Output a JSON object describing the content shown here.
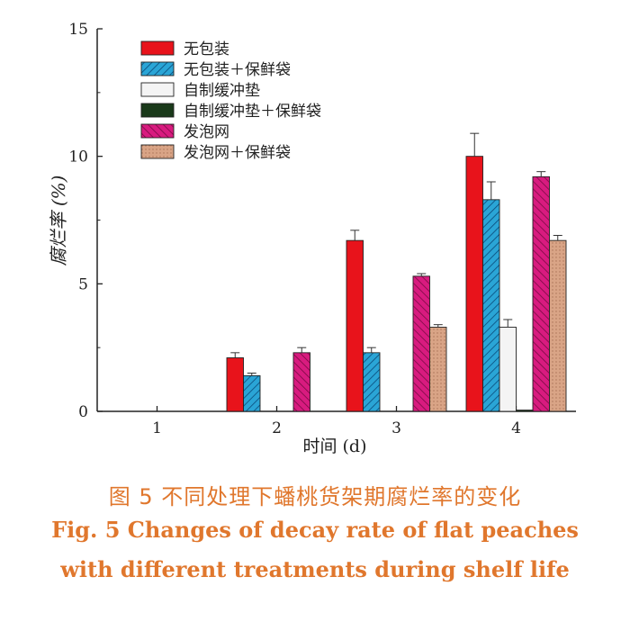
{
  "chart_data": {
    "type": "bar",
    "ylabel": "腐烂率 (%)",
    "xlabel": "时间 (d)",
    "ylim": [
      0,
      15
    ],
    "yticks": [
      0,
      5,
      10,
      15
    ],
    "categories": [
      "1",
      "2",
      "3",
      "4"
    ],
    "grid": false,
    "legend_position": "top-left",
    "series": [
      {
        "name": "无包装",
        "color": "#e8131b",
        "pattern": "solid",
        "values": [
          0,
          2.1,
          6.7,
          10.0
        ],
        "errors": [
          0,
          0.2,
          0.4,
          0.9
        ]
      },
      {
        "name": "无包装＋保鲜袋",
        "color": "#2aa5d6",
        "pattern": "hatch-right",
        "values": [
          0,
          1.4,
          2.3,
          8.3
        ],
        "errors": [
          0,
          0.1,
          0.2,
          0.7
        ]
      },
      {
        "name": "自制缓冲垫",
        "color": "#f4f4f4",
        "pattern": "solid",
        "values": [
          0,
          0,
          0,
          3.3
        ],
        "errors": [
          0,
          0,
          0,
          0.3
        ]
      },
      {
        "name": "自制缓冲垫＋保鲜袋",
        "color": "#1a3a1a",
        "pattern": "solid",
        "values": [
          0,
          0,
          0,
          0.05
        ],
        "errors": [
          0,
          0,
          0,
          0
        ]
      },
      {
        "name": "发泡网",
        "color": "#d81b7f",
        "pattern": "hatch-left",
        "values": [
          0,
          2.3,
          5.3,
          9.2
        ],
        "errors": [
          0,
          0.2,
          0.1,
          0.2
        ]
      },
      {
        "name": "发泡网＋保鲜袋",
        "color": "#d9a486",
        "pattern": "dots",
        "values": [
          0,
          0,
          3.3,
          6.7
        ],
        "errors": [
          0,
          0,
          0.1,
          0.2
        ]
      }
    ]
  },
  "caption": {
    "cn": "图 5   不同处理下蟠桃货架期腐烂率的变化",
    "en_line1": "Fig. 5    Changes of decay rate of flat peaches",
    "en_line2": "with different treatments during shelf life"
  }
}
